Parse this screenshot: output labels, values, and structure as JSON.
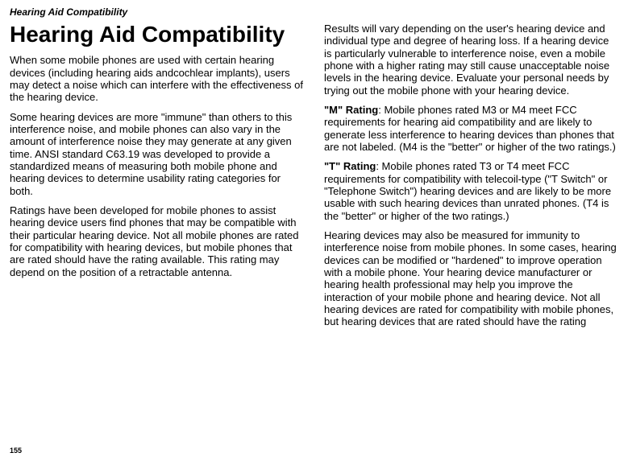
{
  "running_head": "Hearing Aid Compatibility",
  "page_number": "155",
  "left": {
    "title": "Hearing Aid Compatibility",
    "p1": "When some mobile phones are used with certain hearing devices (including hearing aids andcochlear implants), users may detect a noise which can interfere with the effectiveness of the hearing device.",
    "p2": "Some hearing devices are more \"immune\" than others to this interference noise, and mobile phones can also vary in the amount of interference noise they may generate at any given time. ANSI standard C63.19 was developed to provide a standardized means of measuring both mobile phone and hearing devices to determine usability rating categories for both.",
    "p3": "Ratings have been developed for mobile phones to assist hearing device users find phones that may be compatible with their particular hearing device. Not all mobile phones are rated for compatibility with hearing devices, but mobile phones that are rated should have the rating available. This rating may depend on the position of a retractable antenna."
  },
  "right": {
    "p1": "Results will vary depending on the user's hearing device and individual type and degree of hearing loss. If a hearing device is particularly vulnerable to interference noise, even a mobile phone with a higher rating may still cause unacceptable noise levels in the hearing device. Evaluate your personal needs by trying out the mobile phone with your hearing device.",
    "p2_label": "\"M\" Rating",
    "p2_rest": ": Mobile phones rated M3 or M4 meet FCC requirements for hearing aid compatibility and are likely to generate less interference to hearing devices than phones that are not labeled. (M4 is the \"better\" or higher of the two ratings.)",
    "p3_label": "\"T\" Rating",
    "p3_rest": ":  Mobile phones rated T3 or T4 meet FCC requirements for compatibility with telecoil-type (\"T Switch\" or \"Telephone Switch\") hearing devices and are likely to be more usable with such hearing devices than unrated phones. (T4 is the \"better\" or higher of the two ratings.)",
    "p4": "Hearing devices may also be measured for immunity to interference noise from mobile phones. In some cases, hearing devices can be modified or \"hardened\" to improve operation with a mobile phone.  Your hearing device manufacturer or hearing health professional may help you improve the interaction of your mobile phone and hearing device. Not all hearing devices are rated for compatibility with mobile phones, but hearing devices that are rated should have the rating"
  }
}
